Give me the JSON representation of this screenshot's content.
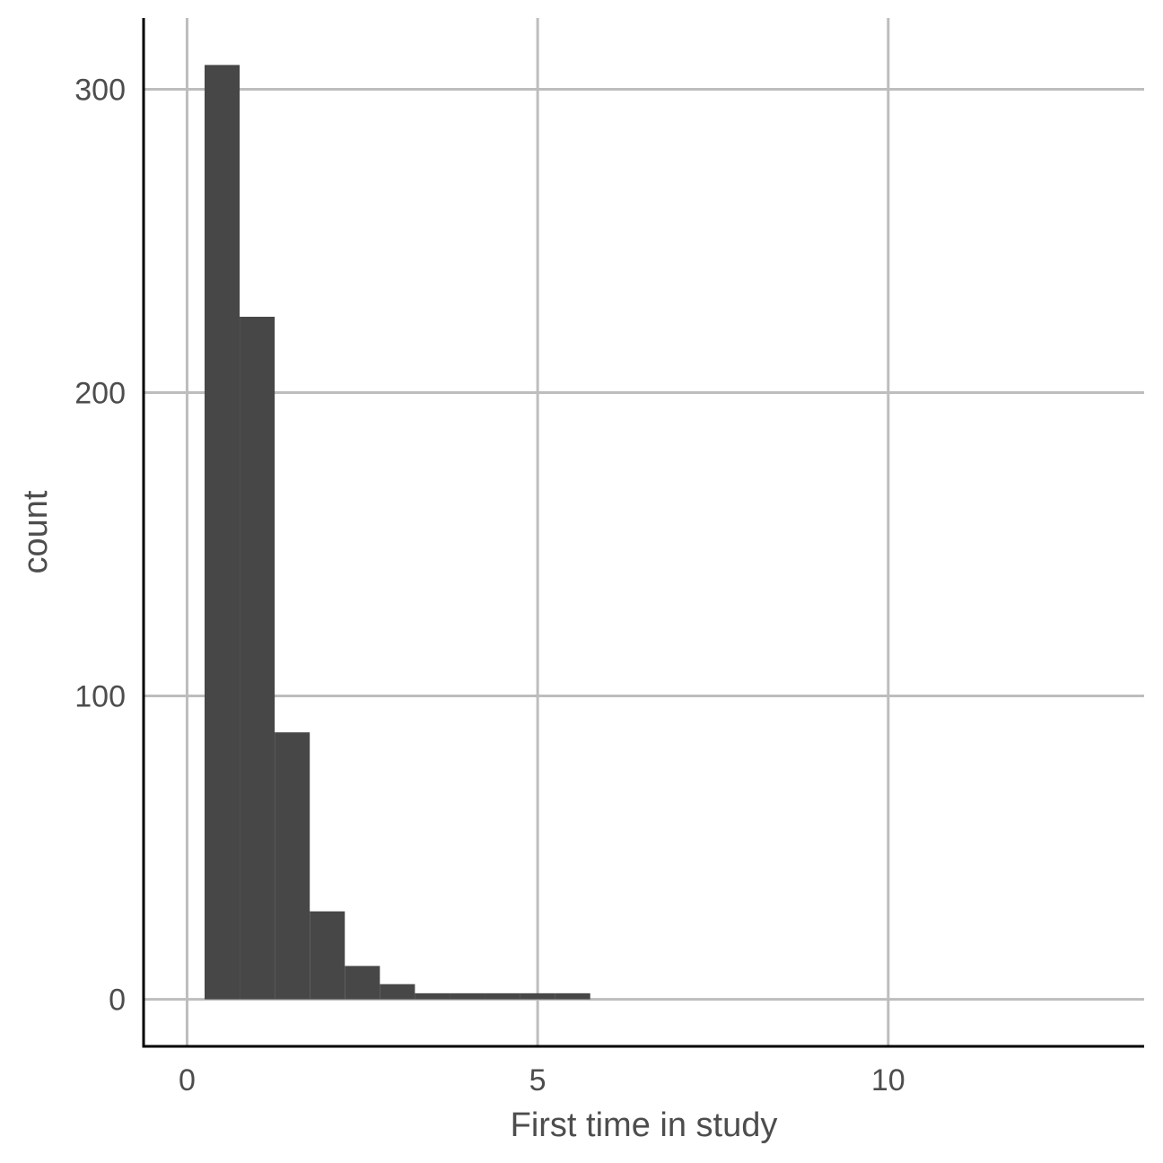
{
  "chart_data": {
    "type": "bar",
    "title": "",
    "xlabel": "First time in study",
    "ylabel": "count",
    "xlim": [
      -0.62,
      13.65
    ],
    "ylim": [
      -15.5,
      323.5
    ],
    "x_ticks": [
      0,
      5,
      10
    ],
    "y_ticks": [
      0,
      100,
      200,
      300
    ],
    "grid": true,
    "bar_color": "#474747",
    "grid_color": "#bdbdbd",
    "bins": [
      {
        "x0": 0.25,
        "x1": 0.75,
        "count": 308
      },
      {
        "x0": 0.75,
        "x1": 1.25,
        "count": 225
      },
      {
        "x0": 1.25,
        "x1": 1.75,
        "count": 88
      },
      {
        "x0": 1.75,
        "x1": 2.25,
        "count": 29
      },
      {
        "x0": 2.25,
        "x1": 2.75,
        "count": 11
      },
      {
        "x0": 2.75,
        "x1": 3.25,
        "count": 5
      },
      {
        "x0": 3.25,
        "x1": 3.75,
        "count": 2
      },
      {
        "x0": 3.75,
        "x1": 4.25,
        "count": 2
      },
      {
        "x0": 4.25,
        "x1": 4.75,
        "count": 2
      },
      {
        "x0": 4.75,
        "x1": 5.25,
        "count": 2
      },
      {
        "x0": 5.25,
        "x1": 5.75,
        "count": 2
      }
    ]
  }
}
